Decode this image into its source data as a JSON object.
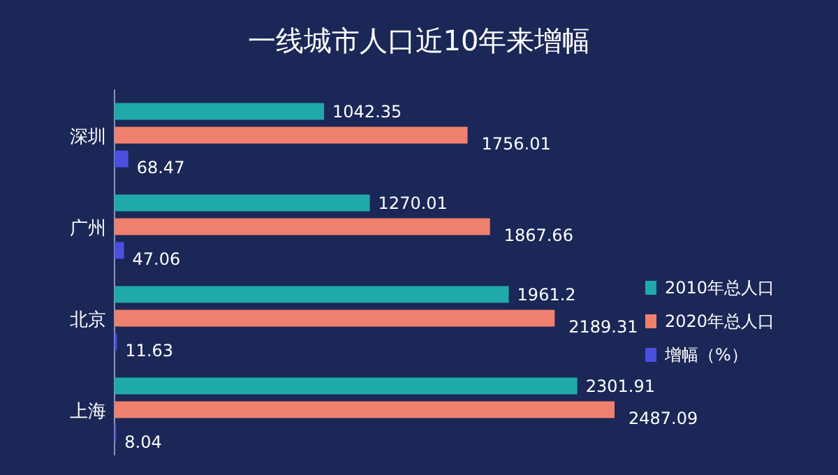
{
  "chart_data": {
    "type": "bar",
    "orientation": "horizontal",
    "title": "一线城市人口近10年来增幅",
    "categories": [
      "深圳",
      "广州",
      "北京",
      "上海"
    ],
    "series": [
      {
        "name": "2010年总人口",
        "color": "#1fa9a8",
        "values": [
          1042.35,
          1270.01,
          1961.2,
          2301.91
        ]
      },
      {
        "name": "2020年总人口",
        "color": "#f0806e",
        "values": [
          1756.01,
          1867.66,
          2189.31,
          2487.09
        ]
      },
      {
        "name": "增幅（%）",
        "color": "#4b4fe0",
        "values": [
          68.47,
          47.06,
          11.63,
          8.04
        ]
      }
    ],
    "data_labels": true,
    "legend": "right"
  }
}
